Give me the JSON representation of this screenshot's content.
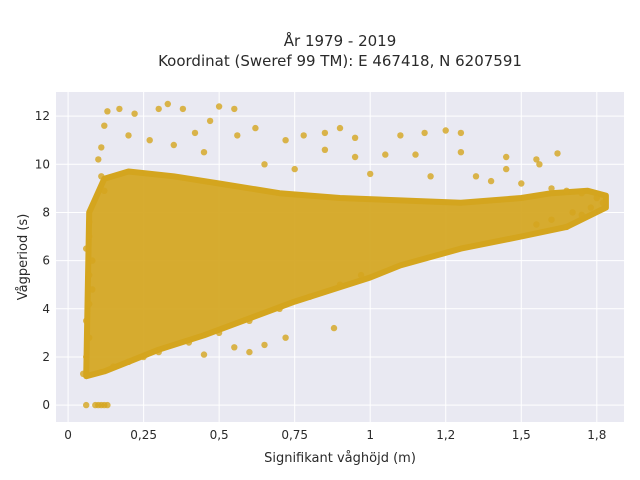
{
  "chart_data": {
    "type": "scatter",
    "title_line1": "År 1979 - 2019",
    "title_line2": "Koordinat (Sweref 99 TM): E 467418, N 6207591",
    "xlabel": "Signifikant våghöjd (m)",
    "ylabel": "Vågperiod (s)",
    "xlim": [
      -0.04,
      1.84
    ],
    "ylim": [
      -0.7,
      13.0
    ],
    "x_ticks": [
      0,
      0.25,
      0.5,
      0.75,
      1,
      1.25,
      1.5,
      1.75
    ],
    "x_tick_labels": [
      "0",
      "0,25",
      "0,5",
      "0,75",
      "1",
      "1,2",
      "1,5",
      "1,8"
    ],
    "y_ticks": [
      0,
      2,
      4,
      6,
      8,
      10,
      12
    ],
    "y_tick_labels": [
      "0",
      "2",
      "4",
      "6",
      "8",
      "10",
      "12"
    ],
    "grid": true,
    "marker_color": "#D4A51E",
    "plot_bg": "#E9E9F2",
    "series": [
      {
        "points": [
          [
            0.06,
            0.0
          ],
          [
            0.09,
            0.0
          ],
          [
            0.1,
            0.0
          ],
          [
            0.11,
            0.0
          ],
          [
            0.12,
            0.0
          ],
          [
            0.13,
            0.0
          ],
          [
            0.05,
            1.3
          ],
          [
            0.06,
            2.0
          ],
          [
            0.07,
            2.8
          ],
          [
            0.06,
            3.5
          ],
          [
            0.07,
            4.2
          ],
          [
            0.08,
            4.8
          ],
          [
            0.07,
            5.4
          ],
          [
            0.08,
            6.0
          ],
          [
            0.06,
            6.5
          ],
          [
            0.07,
            7.0
          ],
          [
            0.07,
            7.6
          ],
          [
            0.12,
            8.9
          ],
          [
            0.11,
            9.5
          ],
          [
            0.1,
            10.2
          ],
          [
            0.11,
            10.7
          ],
          [
            0.12,
            11.6
          ],
          [
            0.13,
            12.2
          ],
          [
            0.17,
            12.3
          ],
          [
            0.22,
            12.1
          ],
          [
            0.3,
            12.3
          ],
          [
            0.33,
            12.5
          ],
          [
            0.38,
            12.3
          ],
          [
            0.5,
            12.4
          ],
          [
            0.55,
            12.3
          ],
          [
            0.42,
            11.3
          ],
          [
            0.47,
            11.8
          ],
          [
            0.56,
            11.2
          ],
          [
            0.62,
            11.5
          ],
          [
            0.72,
            11.0
          ],
          [
            0.78,
            11.2
          ],
          [
            0.85,
            11.3
          ],
          [
            0.9,
            11.5
          ],
          [
            0.95,
            11.1
          ],
          [
            1.1,
            11.2
          ],
          [
            1.18,
            11.3
          ],
          [
            1.25,
            11.4
          ],
          [
            1.3,
            11.3
          ],
          [
            0.85,
            10.6
          ],
          [
            0.95,
            10.3
          ],
          [
            1.05,
            10.4
          ],
          [
            1.15,
            10.4
          ],
          [
            1.3,
            10.5
          ],
          [
            1.45,
            10.3
          ],
          [
            1.55,
            10.2
          ],
          [
            1.62,
            10.45
          ],
          [
            1.56,
            10.0
          ],
          [
            1.45,
            9.8
          ],
          [
            1.35,
            9.5
          ],
          [
            1.5,
            9.2
          ],
          [
            1.6,
            9.0
          ],
          [
            1.65,
            8.9
          ],
          [
            1.7,
            8.8
          ],
          [
            1.75,
            8.6
          ],
          [
            1.77,
            8.4
          ],
          [
            1.73,
            8.2
          ],
          [
            1.67,
            8.0
          ],
          [
            1.6,
            7.7
          ],
          [
            1.55,
            7.5
          ],
          [
            1.65,
            7.4
          ],
          [
            1.7,
            7.9
          ],
          [
            0.7,
            4.0
          ],
          [
            0.8,
            4.5
          ],
          [
            0.9,
            5.0
          ],
          [
            0.97,
            5.4
          ],
          [
            0.6,
            3.5
          ],
          [
            0.5,
            3.0
          ],
          [
            0.4,
            2.6
          ],
          [
            0.3,
            2.2
          ],
          [
            0.25,
            2.0
          ],
          [
            0.2,
            1.8
          ],
          [
            0.15,
            1.6
          ],
          [
            0.88,
            3.2
          ],
          [
            0.72,
            2.8
          ],
          [
            0.65,
            2.5
          ],
          [
            0.55,
            2.4
          ],
          [
            0.45,
            2.1
          ],
          [
            0.6,
            2.2
          ],
          [
            0.35,
            10.8
          ],
          [
            0.27,
            11.0
          ],
          [
            0.2,
            11.2
          ],
          [
            0.45,
            10.5
          ],
          [
            0.65,
            10.0
          ],
          [
            0.75,
            9.8
          ],
          [
            1.0,
            9.6
          ],
          [
            1.2,
            9.5
          ],
          [
            1.4,
            9.3
          ]
        ]
      }
    ]
  }
}
